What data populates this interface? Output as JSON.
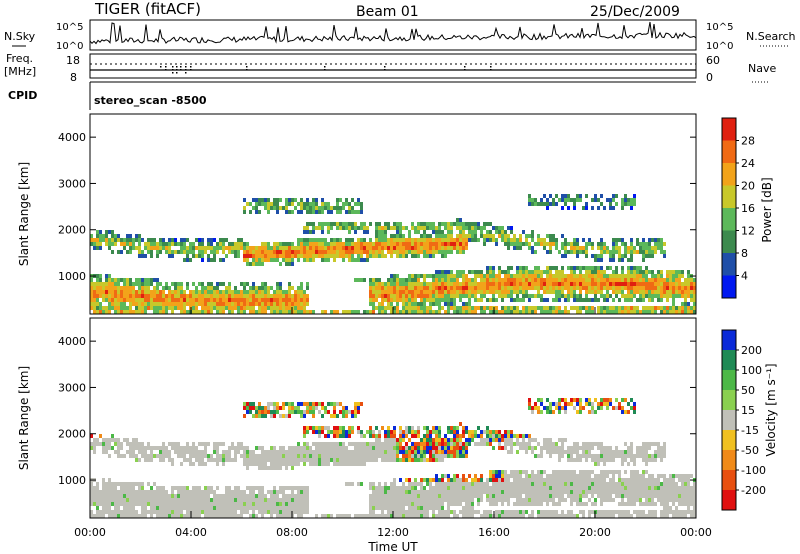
{
  "header": {
    "station": "TIGER (fitACF)",
    "beam": "Beam 01",
    "date": "25/Dec/2009"
  },
  "panels": {
    "sky": {
      "label": "N.Sky",
      "top_tick": "10^5",
      "bottom_tick": "10^0",
      "right_label": "N.Search",
      "right_top_tick": "10^5",
      "right_bottom_tick": "10^0"
    },
    "freq": {
      "label_line1": "Freq.",
      "label_line2": "[MHz]",
      "ticks": [
        "18",
        "8"
      ],
      "right_label": "Nave",
      "right_ticks": [
        "60",
        "0"
      ]
    },
    "cpid": {
      "label": "CPID",
      "value": "stereo_scan  -8500"
    }
  },
  "chart_data": [
    {
      "type": "heatmap",
      "title": "",
      "xlabel": "Time UT",
      "ylabel": "Slant Range [km]",
      "x_ticks": [
        "00:00",
        "04:00",
        "08:00",
        "12:00",
        "16:00",
        "20:00",
        "00:00"
      ],
      "y_ticks": [
        "1000",
        "2000",
        "3000",
        "4000"
      ],
      "ylim": [
        180,
        4500
      ],
      "colorbar": {
        "label": "Power [dB]",
        "ticks": [
          "4",
          "8",
          "12",
          "16",
          "20",
          "24",
          "28"
        ],
        "range": [
          0,
          30
        ],
        "colors": [
          "#0018f0",
          "#1f4fa8",
          "#3c8a4e",
          "#5cb85a",
          "#c8c82a",
          "#f2a31a",
          "#f06a14",
          "#e02010"
        ]
      }
    },
    {
      "type": "heatmap",
      "title": "",
      "xlabel": "Time UT",
      "ylabel": "Slant Range [km]",
      "x_ticks": [
        "00:00",
        "04:00",
        "08:00",
        "12:00",
        "16:00",
        "20:00",
        "00:00"
      ],
      "y_ticks": [
        "1000",
        "2000",
        "3000",
        "4000"
      ],
      "ylim": [
        180,
        4500
      ],
      "colorbar": {
        "label": "Velocity [m s⁻¹]",
        "ticks": [
          "200",
          "100",
          "50",
          "15",
          "-15",
          "-50",
          "-100",
          "-200"
        ],
        "range": [
          -250,
          250
        ],
        "colors": [
          "#0a2ad8",
          "#1f8a55",
          "#4cb847",
          "#8ad050",
          "#c0c0b8",
          "#f0c020",
          "#f08a18",
          "#e85010",
          "#e01010"
        ]
      }
    }
  ]
}
